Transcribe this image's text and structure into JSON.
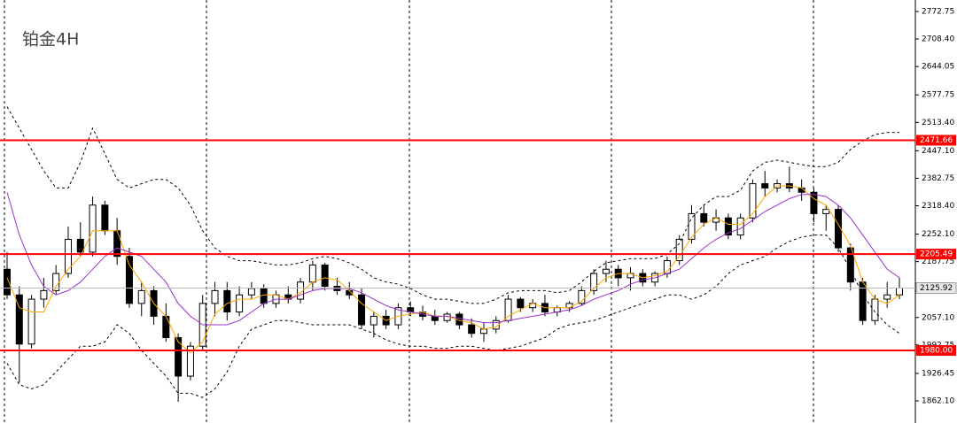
{
  "chart_data": {
    "type": "candlestick",
    "title": "铂金4H",
    "ylim": [
      1810.36,
      2799.65
    ],
    "yticks": [
      2772.75,
      {
        "value": 2708.4,
        "label": "2708.40"
      },
      2644.05,
      2577.75,
      {
        "value": 2513.4,
        "label": "2513.40"
      },
      {
        "value": 2447.1,
        "label": "2447.10"
      },
      2382.75,
      {
        "value": 2318.4,
        "label": "2318.40"
      },
      {
        "value": 2252.1,
        "label": "2252.10"
      },
      2187.75,
      {
        "value": 2057.1,
        "label": "2057.10"
      },
      1992.75,
      1926.45,
      {
        "value": 1862.1,
        "label": "1862.10"
      }
    ],
    "hlines": [
      {
        "value": 2471.66,
        "color": "#ff0000"
      },
      {
        "value": 2205.49,
        "color": "#ff0000"
      },
      {
        "value": {
          "value": 1980,
          "label": "1980.00"
        },
        "color": "#ff0000"
      }
    ],
    "last_price": 2125.92,
    "up_color": "#ffffff",
    "down_color": "#000000",
    "ohlc": {
      "open": [
        2170,
        2110,
        1995,
        2100,
        2120,
        2160,
        2240,
        2210,
        2320,
        2260,
        2200,
        2090,
        2120,
        2060,
        2010,
        1920,
        1990,
        2090,
        2120,
        2070,
        2110,
        2125,
        2090,
        2110,
        2100,
        2140,
        2180,
        2130,
        2120,
        2110,
        2040,
        2060,
        2040,
        2080,
        2070,
        2060,
        2050,
        2065,
        2040,
        2020,
        2030,
        2050,
        2100,
        2080,
        2090,
        2070,
        2080,
        2090,
        2120,
        2160,
        2170,
        2150,
        2160,
        2140,
        2160,
        2190,
        2240,
        2300,
        2280,
        2290,
        2250,
        2290,
        2370,
        2360,
        2370,
        2360,
        2350,
        2300,
        2310,
        2220,
        2140,
        2050,
        2100,
        2110
      ],
      "high": [
        2210,
        2130,
        2110,
        2150,
        2180,
        2270,
        2280,
        2340,
        2330,
        2290,
        2220,
        2140,
        2130,
        2090,
        2020,
        2000,
        2110,
        2140,
        2140,
        2130,
        2140,
        2135,
        2120,
        2130,
        2150,
        2190,
        2185,
        2150,
        2140,
        2125,
        2070,
        2075,
        2090,
        2095,
        2085,
        2075,
        2070,
        2070,
        2055,
        2045,
        2060,
        2110,
        2105,
        2100,
        2110,
        2085,
        2095,
        2130,
        2170,
        2190,
        2180,
        2175,
        2170,
        2165,
        2200,
        2250,
        2320,
        2320,
        2310,
        2300,
        2300,
        2380,
        2400,
        2380,
        2410,
        2380,
        2360,
        2320,
        2320,
        2230,
        2150,
        2110,
        2140,
        2150
      ],
      "low": [
        2100,
        1905,
        1985,
        2080,
        2110,
        2150,
        2200,
        2200,
        2250,
        2180,
        2080,
        2060,
        2040,
        2000,
        1860,
        1910,
        1980,
        2060,
        2050,
        2060,
        2100,
        2080,
        2080,
        2090,
        2090,
        2120,
        2120,
        2110,
        2100,
        2030,
        2010,
        2030,
        2030,
        2060,
        2050,
        2040,
        2045,
        2030,
        2010,
        2000,
        2020,
        2045,
        2070,
        2070,
        2060,
        2060,
        2070,
        2085,
        2110,
        2140,
        2130,
        2120,
        2130,
        2130,
        2150,
        2180,
        2230,
        2270,
        2260,
        2240,
        2240,
        2280,
        2340,
        2350,
        2350,
        2330,
        2280,
        2260,
        2210,
        2120,
        2040,
        2040,
        2080,
        2100
      ],
      "close": [
        2110,
        1995,
        2100,
        2120,
        2160,
        2240,
        2210,
        2320,
        2260,
        2200,
        2090,
        2120,
        2060,
        2010,
        1920,
        1990,
        2090,
        2120,
        2070,
        2110,
        2125,
        2090,
        2110,
        2100,
        2140,
        2180,
        2130,
        2120,
        2110,
        2040,
        2060,
        2040,
        2080,
        2070,
        2060,
        2050,
        2065,
        2040,
        2020,
        2030,
        2050,
        2100,
        2080,
        2090,
        2070,
        2080,
        2090,
        2120,
        2160,
        2170,
        2150,
        2160,
        2140,
        2160,
        2190,
        2240,
        2300,
        2280,
        2290,
        2250,
        2290,
        2370,
        2360,
        2370,
        2360,
        2350,
        2300,
        2310,
        2220,
        2140,
        2050,
        2100,
        2110,
        2125.92
      ]
    },
    "lines": [
      {
        "color": "#ffa500",
        "dash": false,
        "values": [
          2150,
          2080,
          2070,
          2070,
          2130,
          2170,
          2200,
          2260,
          2260,
          2260,
          2180,
          2140,
          2090,
          2060,
          2000,
          1975,
          2000,
          2065,
          2090,
          2100,
          2100,
          2110,
          2110,
          2100,
          2115,
          2140,
          2150,
          2145,
          2120,
          2090,
          2070,
          2050,
          2060,
          2065,
          2070,
          2060,
          2060,
          2050,
          2045,
          2030,
          2035,
          2060,
          2075,
          2090,
          2080,
          2080,
          2080,
          2095,
          2125,
          2150,
          2160,
          2160,
          2150,
          2155,
          2165,
          2200,
          2245,
          2275,
          2290,
          2275,
          2275,
          2300,
          2340,
          2365,
          2365,
          2360,
          2335,
          2320,
          2275,
          2225,
          2140,
          2100,
          2090,
          2110
        ]
      },
      {
        "color": "#9932cc",
        "dash": false,
        "values": [
          2350,
          2250,
          2180,
          2130,
          2110,
          2120,
          2140,
          2170,
          2200,
          2220,
          2210,
          2200,
          2170,
          2140,
          2090,
          2060,
          2040,
          2040,
          2040,
          2050,
          2070,
          2090,
          2100,
          2100,
          2110,
          2120,
          2125,
          2125,
          2125,
          2115,
          2100,
          2085,
          2075,
          2070,
          2065,
          2060,
          2060,
          2055,
          2050,
          2045,
          2045,
          2050,
          2055,
          2060,
          2065,
          2070,
          2075,
          2085,
          2100,
          2110,
          2120,
          2135,
          2145,
          2150,
          2160,
          2170,
          2195,
          2220,
          2240,
          2255,
          2265,
          2285,
          2305,
          2320,
          2335,
          2345,
          2345,
          2340,
          2320,
          2290,
          2250,
          2210,
          2170,
          2150
        ]
      },
      {
        "color": "#000000",
        "dash": true,
        "values": [
          2550,
          2500,
          2450,
          2400,
          2360,
          2360,
          2420,
          2500,
          2440,
          2380,
          2360,
          2370,
          2380,
          2380,
          2360,
          2320,
          2260,
          2220,
          2200,
          2190,
          2190,
          2185,
          2180,
          2180,
          2185,
          2195,
          2200,
          2195,
          2185,
          2170,
          2150,
          2140,
          2135,
          2125,
          2110,
          2100,
          2100,
          2095,
          2090,
          2090,
          2100,
          2115,
          2120,
          2120,
          2120,
          2115,
          2120,
          2140,
          2165,
          2185,
          2190,
          2195,
          2195,
          2195,
          2205,
          2230,
          2290,
          2320,
          2340,
          2340,
          2355,
          2400,
          2420,
          2425,
          2420,
          2415,
          2410,
          2410,
          2420,
          2450,
          2470,
          2485,
          2490,
          2490
        ]
      },
      {
        "color": "#000000",
        "dash": true,
        "values": [
          1950,
          1900,
          1890,
          1900,
          1930,
          1960,
          1990,
          1990,
          2000,
          2040,
          2020,
          1980,
          1950,
          1920,
          1880,
          1880,
          1870,
          1890,
          1930,
          1990,
          2030,
          2040,
          2050,
          2050,
          2045,
          2040,
          2040,
          2040,
          2040,
          2030,
          2020,
          2005,
          1995,
          1990,
          1990,
          1985,
          1985,
          1990,
          1990,
          1985,
          1980,
          1985,
          1990,
          2000,
          2010,
          2030,
          2040,
          2045,
          2050,
          2060,
          2070,
          2080,
          2090,
          2100,
          2110,
          2110,
          2100,
          2110,
          2130,
          2160,
          2180,
          2190,
          2200,
          2220,
          2235,
          2245,
          2250,
          2250,
          2220,
          2170,
          2110,
          2070,
          2040,
          2020
        ]
      }
    ]
  }
}
